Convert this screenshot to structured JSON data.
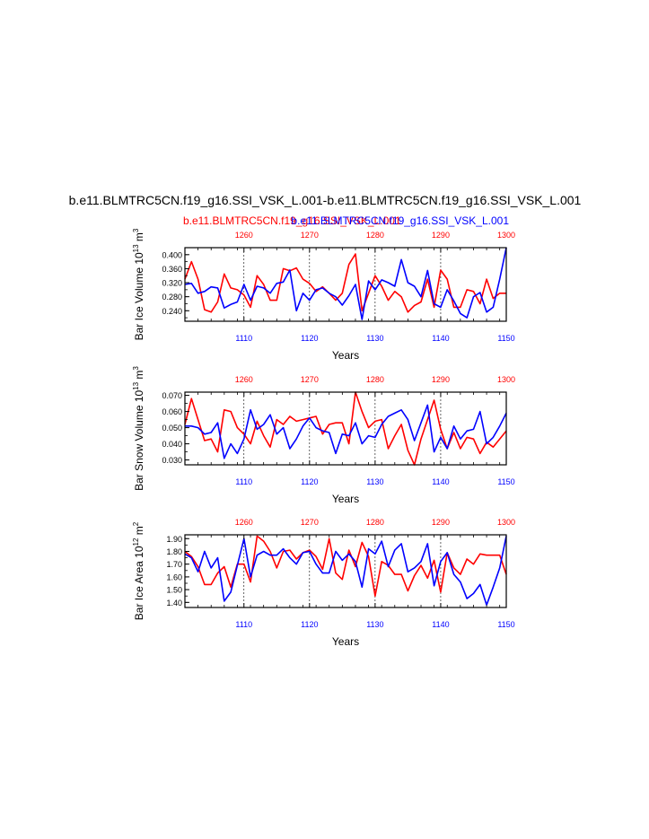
{
  "title": "b.e11.BLMTRC5CN.f19_g16.SSI_VSK_L.001-b.e11.BLMTRC5CN.f19_g16.SSI_VSK_L.001",
  "subtitle_left": "b.e11.BLMTRC5CN.f19_g16.SSI_VSK_L.001",
  "subtitle_right": "b.e11.BLMTRC5CN.f19_g16.SSI_VSK_L.001",
  "colors": {
    "red": "#ff0000",
    "blue": "#0000ff",
    "axis": "#000000"
  },
  "chart_data": [
    {
      "type": "line",
      "xlabel": "Years",
      "ylabel_main": "Bar Ice Volume 10",
      "ylabel_exp": "13",
      "ylabel_unit": " m",
      "ylabel_unit_exp": "3",
      "ylim": [
        0.21,
        0.42
      ],
      "yticks": [
        0.24,
        0.28,
        0.32,
        0.36,
        0.4
      ],
      "yticklabels": [
        "0.240",
        "0.280",
        "0.320",
        "0.360",
        "0.400"
      ],
      "x_bottom": {
        "range": [
          1101,
          1150
        ],
        "ticks": [
          1110,
          1120,
          1130,
          1140,
          1150
        ],
        "labels": [
          "1110",
          "1120",
          "1130",
          "1140",
          "1150"
        ]
      },
      "x_top": {
        "range": [
          1251,
          1300
        ],
        "ticks": [
          1260,
          1270,
          1280,
          1290,
          1300
        ],
        "labels": [
          "1260",
          "1270",
          "1280",
          "1290",
          "1300"
        ]
      },
      "series": [
        {
          "color": "red",
          "axis": "top",
          "x": [
            1251,
            1252,
            1253,
            1254,
            1255,
            1256,
            1257,
            1258,
            1259,
            1260,
            1261,
            1262,
            1263,
            1264,
            1265,
            1266,
            1267,
            1268,
            1269,
            1270,
            1271,
            1272,
            1273,
            1274,
            1275,
            1276,
            1277,
            1278,
            1279,
            1280,
            1281,
            1282,
            1283,
            1284,
            1285,
            1286,
            1287,
            1288,
            1289,
            1290,
            1291,
            1292,
            1293,
            1294,
            1295,
            1296,
            1297,
            1298,
            1299,
            1300
          ],
          "y": [
            0.33,
            0.38,
            0.33,
            0.243,
            0.236,
            0.265,
            0.345,
            0.305,
            0.3,
            0.285,
            0.25,
            0.34,
            0.315,
            0.27,
            0.27,
            0.36,
            0.354,
            0.362,
            0.33,
            0.318,
            0.295,
            0.308,
            0.29,
            0.27,
            0.29,
            0.372,
            0.402,
            0.24,
            0.29,
            0.34,
            0.31,
            0.27,
            0.295,
            0.28,
            0.236,
            0.255,
            0.265,
            0.33,
            0.25,
            0.356,
            0.33,
            0.25,
            0.25,
            0.3,
            0.295,
            0.26,
            0.33,
            0.275,
            0.29,
            0.29
          ]
        },
        {
          "color": "blue",
          "axis": "bottom",
          "x": [
            1101,
            1102,
            1103,
            1104,
            1105,
            1106,
            1107,
            1108,
            1109,
            1110,
            1111,
            1112,
            1113,
            1114,
            1115,
            1116,
            1117,
            1118,
            1119,
            1120,
            1121,
            1122,
            1123,
            1124,
            1125,
            1126,
            1127,
            1128,
            1129,
            1130,
            1131,
            1132,
            1133,
            1134,
            1135,
            1136,
            1137,
            1138,
            1139,
            1140,
            1141,
            1142,
            1143,
            1144,
            1145,
            1146,
            1147,
            1148,
            1149,
            1150
          ],
          "y": [
            0.315,
            0.318,
            0.29,
            0.295,
            0.308,
            0.305,
            0.248,
            0.258,
            0.265,
            0.315,
            0.27,
            0.31,
            0.305,
            0.29,
            0.318,
            0.322,
            0.356,
            0.24,
            0.29,
            0.27,
            0.3,
            0.305,
            0.29,
            0.28,
            0.256,
            0.283,
            0.315,
            0.215,
            0.325,
            0.3,
            0.328,
            0.32,
            0.31,
            0.386,
            0.32,
            0.31,
            0.28,
            0.355,
            0.26,
            0.25,
            0.3,
            0.268,
            0.232,
            0.22,
            0.28,
            0.292,
            0.236,
            0.25,
            0.33,
            0.42
          ]
        }
      ]
    },
    {
      "type": "line",
      "xlabel": "Years",
      "ylabel_main": "Bar Snow Volume 10",
      "ylabel_exp": "13",
      "ylabel_unit": " m",
      "ylabel_unit_exp": "3",
      "ylim": [
        0.027,
        0.072
      ],
      "yticks": [
        0.03,
        0.04,
        0.05,
        0.06,
        0.07
      ],
      "yticklabels": [
        "0.030",
        "0.040",
        "0.050",
        "0.060",
        "0.070"
      ],
      "x_bottom": {
        "range": [
          1101,
          1150
        ],
        "ticks": [
          1110,
          1120,
          1130,
          1140,
          1150
        ],
        "labels": [
          "1110",
          "1120",
          "1130",
          "1140",
          "1150"
        ]
      },
      "x_top": {
        "range": [
          1251,
          1300
        ],
        "ticks": [
          1260,
          1270,
          1280,
          1290,
          1300
        ],
        "labels": [
          "1260",
          "1270",
          "1280",
          "1290",
          "1300"
        ]
      },
      "series": [
        {
          "color": "red",
          "axis": "top",
          "x": [
            1251,
            1252,
            1253,
            1254,
            1255,
            1256,
            1257,
            1258,
            1259,
            1260,
            1261,
            1262,
            1263,
            1264,
            1265,
            1266,
            1267,
            1268,
            1269,
            1270,
            1271,
            1272,
            1273,
            1274,
            1275,
            1276,
            1277,
            1278,
            1279,
            1280,
            1281,
            1282,
            1283,
            1284,
            1285,
            1286,
            1287,
            1288,
            1289,
            1290,
            1291,
            1292,
            1293,
            1294,
            1295,
            1296,
            1297,
            1298,
            1299,
            1300
          ],
          "y": [
            0.052,
            0.068,
            0.055,
            0.042,
            0.043,
            0.035,
            0.061,
            0.06,
            0.05,
            0.046,
            0.04,
            0.054,
            0.045,
            0.038,
            0.055,
            0.052,
            0.057,
            0.054,
            0.055,
            0.056,
            0.057,
            0.046,
            0.052,
            0.053,
            0.053,
            0.04,
            0.072,
            0.06,
            0.05,
            0.054,
            0.055,
            0.037,
            0.045,
            0.052,
            0.036,
            0.027,
            0.043,
            0.055,
            0.067,
            0.049,
            0.037,
            0.047,
            0.037,
            0.044,
            0.043,
            0.034,
            0.041,
            0.038,
            0.043,
            0.048
          ]
        },
        {
          "color": "blue",
          "axis": "bottom",
          "x": [
            1101,
            1102,
            1103,
            1104,
            1105,
            1106,
            1107,
            1108,
            1109,
            1110,
            1111,
            1112,
            1113,
            1114,
            1115,
            1116,
            1117,
            1118,
            1119,
            1120,
            1121,
            1122,
            1123,
            1124,
            1125,
            1126,
            1127,
            1128,
            1129,
            1130,
            1131,
            1132,
            1133,
            1134,
            1135,
            1136,
            1137,
            1138,
            1139,
            1140,
            1141,
            1142,
            1143,
            1144,
            1145,
            1146,
            1147,
            1148,
            1149,
            1150
          ],
          "y": [
            0.051,
            0.051,
            0.05,
            0.046,
            0.047,
            0.053,
            0.031,
            0.04,
            0.034,
            0.043,
            0.061,
            0.049,
            0.052,
            0.058,
            0.046,
            0.05,
            0.037,
            0.043,
            0.051,
            0.056,
            0.05,
            0.048,
            0.047,
            0.034,
            0.046,
            0.045,
            0.053,
            0.04,
            0.045,
            0.044,
            0.052,
            0.057,
            0.059,
            0.061,
            0.055,
            0.042,
            0.053,
            0.064,
            0.035,
            0.044,
            0.037,
            0.051,
            0.043,
            0.048,
            0.049,
            0.06,
            0.04,
            0.044,
            0.051,
            0.059
          ]
        }
      ]
    },
    {
      "type": "line",
      "xlabel": "Years",
      "ylabel_main": "Bar Ice Area 10",
      "ylabel_exp": "12",
      "ylabel_unit": " m",
      "ylabel_unit_exp": "2",
      "ylim": [
        1.36,
        1.93
      ],
      "yticks": [
        1.4,
        1.5,
        1.6,
        1.7,
        1.8,
        1.9
      ],
      "yticklabels": [
        "1.40",
        "1.50",
        "1.60",
        "1.70",
        "1.80",
        "1.90"
      ],
      "x_bottom": {
        "range": [
          1101,
          1150
        ],
        "ticks": [
          1110,
          1120,
          1130,
          1140,
          1150
        ],
        "labels": [
          "1110",
          "1120",
          "1130",
          "1140",
          "1150"
        ]
      },
      "x_top": {
        "range": [
          1251,
          1300
        ],
        "ticks": [
          1260,
          1270,
          1280,
          1290,
          1300
        ],
        "labels": [
          "1260",
          "1270",
          "1280",
          "1290",
          "1300"
        ]
      },
      "series": [
        {
          "color": "red",
          "axis": "top",
          "x": [
            1251,
            1252,
            1253,
            1254,
            1255,
            1256,
            1257,
            1258,
            1259,
            1260,
            1261,
            1262,
            1263,
            1264,
            1265,
            1266,
            1267,
            1268,
            1269,
            1270,
            1271,
            1272,
            1273,
            1274,
            1275,
            1276,
            1277,
            1278,
            1279,
            1280,
            1281,
            1282,
            1283,
            1284,
            1285,
            1286,
            1287,
            1288,
            1289,
            1290,
            1291,
            1292,
            1293,
            1294,
            1295,
            1296,
            1297,
            1298,
            1299,
            1300
          ],
          "y": [
            1.8,
            1.76,
            1.68,
            1.54,
            1.54,
            1.63,
            1.68,
            1.52,
            1.7,
            1.7,
            1.56,
            1.92,
            1.88,
            1.8,
            1.67,
            1.8,
            1.81,
            1.74,
            1.79,
            1.81,
            1.76,
            1.66,
            1.9,
            1.63,
            1.58,
            1.81,
            1.68,
            1.87,
            1.76,
            1.45,
            1.72,
            1.69,
            1.62,
            1.62,
            1.49,
            1.61,
            1.69,
            1.59,
            1.73,
            1.48,
            1.79,
            1.67,
            1.62,
            1.74,
            1.7,
            1.78,
            1.77,
            1.77,
            1.77,
            1.62
          ]
        },
        {
          "color": "blue",
          "axis": "bottom",
          "x": [
            1101,
            1102,
            1103,
            1104,
            1105,
            1106,
            1107,
            1108,
            1109,
            1110,
            1111,
            1112,
            1113,
            1114,
            1115,
            1116,
            1117,
            1118,
            1119,
            1120,
            1121,
            1122,
            1123,
            1124,
            1125,
            1126,
            1127,
            1128,
            1129,
            1130,
            1131,
            1132,
            1133,
            1134,
            1135,
            1136,
            1137,
            1138,
            1139,
            1140,
            1141,
            1142,
            1143,
            1144,
            1145,
            1146,
            1147,
            1148,
            1149,
            1150
          ],
          "y": [
            1.78,
            1.75,
            1.64,
            1.8,
            1.67,
            1.75,
            1.41,
            1.48,
            1.69,
            1.9,
            1.6,
            1.77,
            1.8,
            1.77,
            1.77,
            1.82,
            1.75,
            1.7,
            1.79,
            1.8,
            1.7,
            1.63,
            1.63,
            1.8,
            1.73,
            1.78,
            1.72,
            1.52,
            1.82,
            1.78,
            1.88,
            1.68,
            1.81,
            1.86,
            1.64,
            1.67,
            1.72,
            1.86,
            1.53,
            1.72,
            1.79,
            1.62,
            1.56,
            1.43,
            1.47,
            1.54,
            1.38,
            1.52,
            1.67,
            1.92
          ]
        }
      ]
    }
  ]
}
